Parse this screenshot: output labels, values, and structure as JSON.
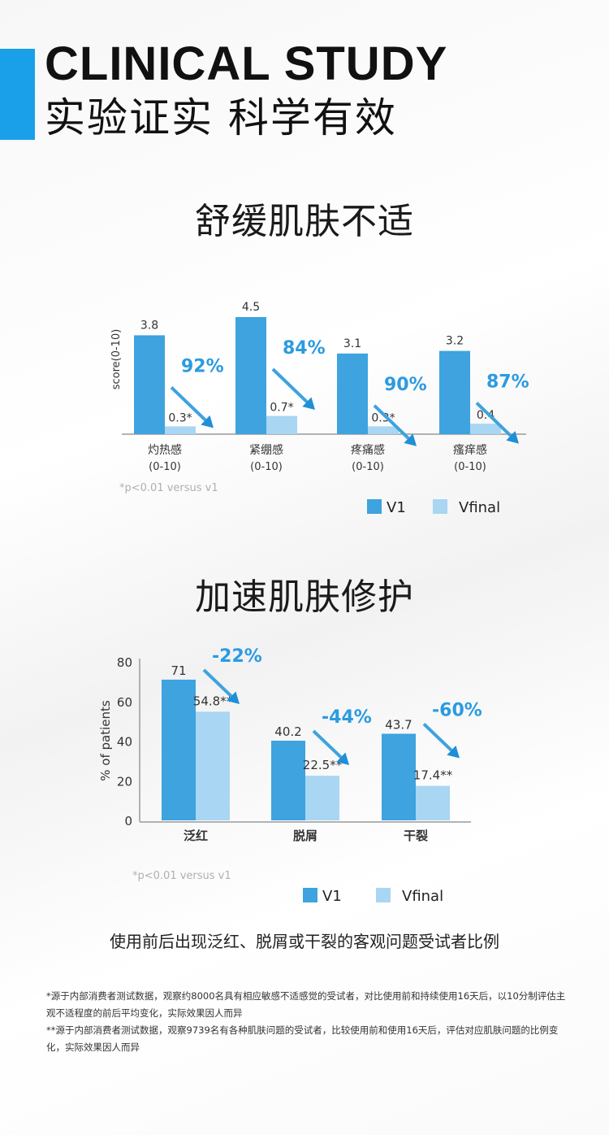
{
  "header": {
    "title_en": "CLINICAL STUDY",
    "title_cn": "实验证实 科学有效",
    "accent_color": "#1aa0e8"
  },
  "chart_data": [
    {
      "type": "bar",
      "title": "舒缓肌肤不适",
      "ylabel": "score(0-10)",
      "categories": [
        [
          "灼热感",
          "(0-10)"
        ],
        [
          "紧绷感",
          "(0-10)"
        ],
        [
          "疼痛感",
          "(0-10)"
        ],
        [
          "瘙痒感",
          "(0-10)"
        ]
      ],
      "series": [
        {
          "name": "V1",
          "values": [
            3.8,
            4.5,
            3.1,
            3.2
          ],
          "labels": [
            "3.8",
            "4.5",
            "3.1",
            "3.2"
          ],
          "color": "#3ea3de"
        },
        {
          "name": "Vfinal",
          "values": [
            0.3,
            0.7,
            0.3,
            0.4
          ],
          "labels": [
            "0.3*",
            "0.7*",
            "0.3*",
            "0.4"
          ],
          "color": "#a8d6f3"
        }
      ],
      "annotations": [
        "92%",
        "84%",
        "90%",
        "87%"
      ],
      "ylim": [
        0,
        5
      ],
      "note": "*p<0.01 versus v1",
      "legend_position": "bottom-right"
    },
    {
      "type": "bar",
      "title": "加速肌肤修护",
      "ylabel": "% of patients",
      "yticks": [
        0,
        20,
        40,
        60,
        80
      ],
      "categories": [
        [
          "泛红"
        ],
        [
          "脱屑"
        ],
        [
          "干裂"
        ]
      ],
      "series": [
        {
          "name": "V1",
          "values": [
            71,
            40.2,
            43.7
          ],
          "labels": [
            "71",
            "40.2",
            "43.7"
          ],
          "color": "#3ea3de"
        },
        {
          "name": "Vfinal",
          "values": [
            54.8,
            22.5,
            17.4
          ],
          "labels": [
            "54.8**",
            "22.5**",
            "17.4**"
          ],
          "color": "#a8d6f3"
        }
      ],
      "annotations": [
        "-22%",
        "-44%",
        "-60%"
      ],
      "ylim": [
        0,
        80
      ],
      "note": "*p<0.01 versus v1",
      "caption": "使用前后出现泛红、脱屑或干裂的客观问题受试者比例",
      "legend_position": "bottom-right"
    }
  ],
  "footnotes": [
    "*源于内部消费者测试数据，观察约8000名具有相应敏感不适感觉的受试者，对比使用前和持续使用16天后，以10分制评估主观不适程度的前后平均变化，实际效果因人而异",
    "**源于内部消费者测试数据，观察9739名有各种肌肤问题的受试者，比较使用前和使用16天后，评估对应肌肤问题的比例变化，实际效果因人而异"
  ]
}
